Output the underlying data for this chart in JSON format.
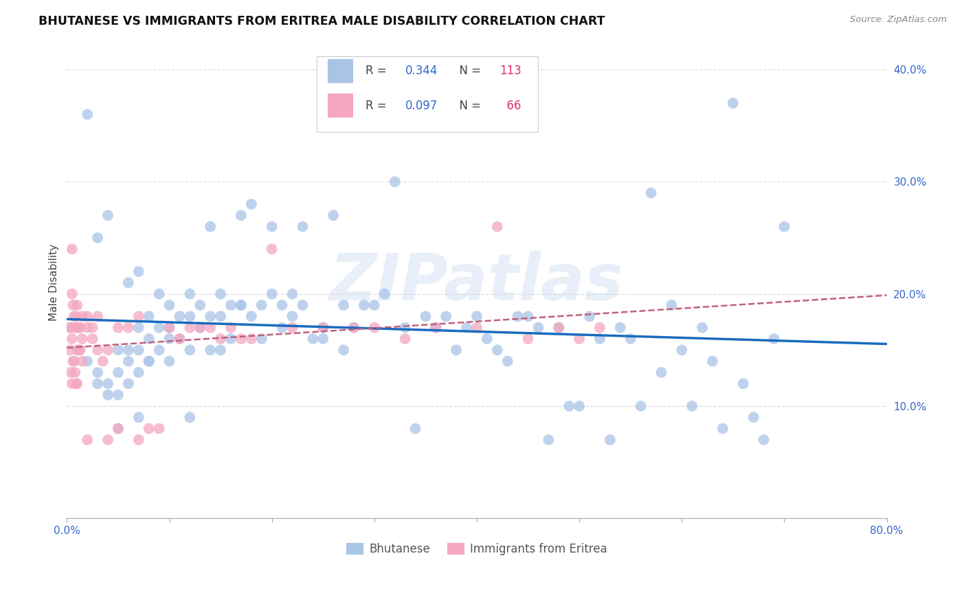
{
  "title": "BHUTANESE VS IMMIGRANTS FROM ERITREA MALE DISABILITY CORRELATION CHART",
  "source": "Source: ZipAtlas.com",
  "ylabel": "Male Disability",
  "xlim": [
    0.0,
    0.8
  ],
  "ylim": [
    0.0,
    0.42
  ],
  "xtick_positions": [
    0.0,
    0.1,
    0.2,
    0.3,
    0.4,
    0.5,
    0.6,
    0.7,
    0.8
  ],
  "xticklabels": [
    "0.0%",
    "",
    "",
    "",
    "",
    "",
    "",
    "",
    "80.0%"
  ],
  "ytick_positions": [
    0.0,
    0.1,
    0.2,
    0.3,
    0.4
  ],
  "yticklabels": [
    "",
    "10.0%",
    "20.0%",
    "30.0%",
    "40.0%"
  ],
  "grid_color": "#dddddd",
  "background_color": "#ffffff",
  "bhutanese_color": "#aac4e8",
  "eritrea_color": "#f4a7c0",
  "bhutanese_line_color": "#1a6bbf",
  "eritrea_line_color": "#c0607a",
  "watermark": "ZIPatlas",
  "R_bhu": 0.344,
  "N_bhu": 113,
  "R_eri": 0.097,
  "N_eri": 66,
  "bhu_x": [
    0.02,
    0.03,
    0.03,
    0.04,
    0.04,
    0.05,
    0.05,
    0.05,
    0.06,
    0.06,
    0.06,
    0.07,
    0.07,
    0.07,
    0.07,
    0.08,
    0.08,
    0.08,
    0.09,
    0.09,
    0.09,
    0.1,
    0.1,
    0.1,
    0.11,
    0.11,
    0.12,
    0.12,
    0.12,
    0.13,
    0.13,
    0.14,
    0.14,
    0.15,
    0.15,
    0.15,
    0.16,
    0.16,
    0.17,
    0.17,
    0.18,
    0.18,
    0.19,
    0.19,
    0.2,
    0.2,
    0.21,
    0.22,
    0.22,
    0.23,
    0.23,
    0.24,
    0.25,
    0.25,
    0.26,
    0.27,
    0.28,
    0.29,
    0.3,
    0.31,
    0.32,
    0.33,
    0.34,
    0.35,
    0.36,
    0.37,
    0.38,
    0.39,
    0.4,
    0.41,
    0.42,
    0.43,
    0.44,
    0.45,
    0.46,
    0.47,
    0.48,
    0.49,
    0.5,
    0.51,
    0.52,
    0.53,
    0.54,
    0.55,
    0.56,
    0.57,
    0.58,
    0.59,
    0.6,
    0.61,
    0.62,
    0.63,
    0.64,
    0.65,
    0.66,
    0.67,
    0.68,
    0.69,
    0.7,
    0.02,
    0.03,
    0.04,
    0.05,
    0.06,
    0.07,
    0.08,
    0.1,
    0.12,
    0.14,
    0.17,
    0.21,
    0.27
  ],
  "bhu_y": [
    0.14,
    0.13,
    0.12,
    0.12,
    0.11,
    0.15,
    0.13,
    0.11,
    0.15,
    0.14,
    0.12,
    0.22,
    0.17,
    0.15,
    0.13,
    0.18,
    0.16,
    0.14,
    0.2,
    0.17,
    0.15,
    0.19,
    0.17,
    0.14,
    0.18,
    0.16,
    0.2,
    0.18,
    0.15,
    0.19,
    0.17,
    0.18,
    0.15,
    0.2,
    0.18,
    0.15,
    0.19,
    0.16,
    0.27,
    0.19,
    0.28,
    0.18,
    0.19,
    0.16,
    0.26,
    0.2,
    0.19,
    0.2,
    0.18,
    0.26,
    0.19,
    0.16,
    0.17,
    0.16,
    0.27,
    0.15,
    0.17,
    0.19,
    0.19,
    0.2,
    0.3,
    0.17,
    0.08,
    0.18,
    0.17,
    0.18,
    0.15,
    0.17,
    0.18,
    0.16,
    0.15,
    0.14,
    0.18,
    0.18,
    0.17,
    0.07,
    0.17,
    0.1,
    0.1,
    0.18,
    0.16,
    0.07,
    0.17,
    0.16,
    0.1,
    0.29,
    0.13,
    0.19,
    0.15,
    0.1,
    0.17,
    0.14,
    0.08,
    0.37,
    0.12,
    0.09,
    0.07,
    0.16,
    0.26,
    0.36,
    0.25,
    0.27,
    0.08,
    0.21,
    0.09,
    0.14,
    0.16,
    0.09,
    0.26,
    0.19,
    0.17,
    0.19
  ],
  "eri_x": [
    0.003,
    0.003,
    0.004,
    0.004,
    0.005,
    0.005,
    0.005,
    0.005,
    0.006,
    0.006,
    0.007,
    0.007,
    0.008,
    0.008,
    0.009,
    0.009,
    0.01,
    0.01,
    0.01,
    0.01,
    0.012,
    0.012,
    0.013,
    0.013,
    0.015,
    0.015,
    0.015,
    0.02,
    0.02,
    0.02,
    0.025,
    0.025,
    0.03,
    0.03,
    0.035,
    0.04,
    0.04,
    0.05,
    0.05,
    0.06,
    0.07,
    0.07,
    0.08,
    0.09,
    0.1,
    0.11,
    0.12,
    0.13,
    0.14,
    0.15,
    0.16,
    0.17,
    0.18,
    0.2,
    0.22,
    0.25,
    0.28,
    0.3,
    0.33,
    0.36,
    0.4,
    0.42,
    0.45,
    0.48,
    0.5,
    0.52
  ],
  "eri_y": [
    0.17,
    0.15,
    0.17,
    0.13,
    0.24,
    0.2,
    0.16,
    0.12,
    0.19,
    0.14,
    0.18,
    0.14,
    0.17,
    0.13,
    0.18,
    0.12,
    0.19,
    0.17,
    0.15,
    0.12,
    0.17,
    0.15,
    0.17,
    0.15,
    0.18,
    0.16,
    0.14,
    0.18,
    0.17,
    0.07,
    0.17,
    0.16,
    0.18,
    0.15,
    0.14,
    0.15,
    0.07,
    0.17,
    0.08,
    0.17,
    0.18,
    0.07,
    0.08,
    0.08,
    0.17,
    0.16,
    0.17,
    0.17,
    0.17,
    0.16,
    0.17,
    0.16,
    0.16,
    0.24,
    0.17,
    0.17,
    0.17,
    0.17,
    0.16,
    0.17,
    0.17,
    0.26,
    0.16,
    0.17,
    0.16,
    0.17
  ]
}
